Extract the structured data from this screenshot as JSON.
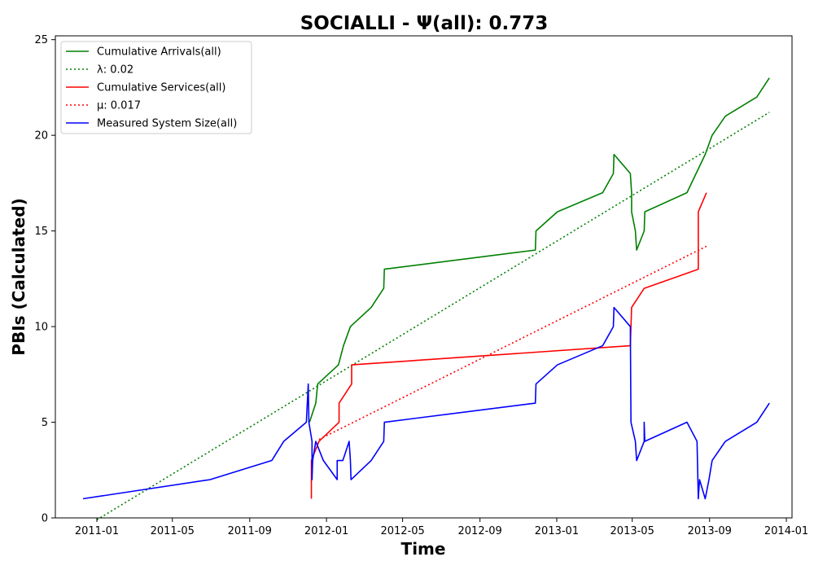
{
  "chart_data": {
    "type": "line",
    "title": "SOCIALLI -  Ψ(all): 0.773",
    "xlabel": "Time",
    "ylabel": "PBIs (Calculated)",
    "xlim": [
      "2010-10-27",
      "2014-01-10"
    ],
    "ylim": [
      0,
      25.2
    ],
    "x_ticks": [
      "2011-01-01",
      "2011-05-01",
      "2011-09-01",
      "2012-01-01",
      "2012-05-01",
      "2012-09-01",
      "2013-01-01",
      "2013-05-01",
      "2013-09-01",
      "2014-01-01"
    ],
    "x_tick_labels": [
      "2011-01",
      "2011-05",
      "2011-09",
      "2012-01",
      "2012-05",
      "2012-09",
      "2013-01",
      "2013-05",
      "2013-09",
      "2014-01"
    ],
    "y_ticks": [
      0,
      5,
      10,
      15,
      20,
      25
    ],
    "grid": false,
    "legend_position": "top-left",
    "series": [
      {
        "name": "Cumulative Arrivals(all)",
        "color": "#008000",
        "style": "solid",
        "points": [
          [
            "2011-12-05",
            5
          ],
          [
            "2011-12-15",
            6
          ],
          [
            "2011-12-18",
            7
          ],
          [
            "2012-01-20",
            8
          ],
          [
            "2012-01-28",
            9
          ],
          [
            "2012-02-08",
            10
          ],
          [
            "2012-03-12",
            11
          ],
          [
            "2012-04-01",
            12
          ],
          [
            "2012-04-02",
            13
          ],
          [
            "2012-11-28",
            14
          ],
          [
            "2012-11-29",
            15
          ],
          [
            "2013-01-02",
            16
          ],
          [
            "2013-03-15",
            17
          ],
          [
            "2013-04-01",
            18
          ],
          [
            "2013-04-02",
            19
          ],
          [
            "2013-04-28",
            18
          ],
          [
            "2013-04-30",
            17
          ],
          [
            "2013-04-30",
            16
          ],
          [
            "2013-05-06",
            15
          ],
          [
            "2013-05-08",
            14
          ],
          [
            "2013-05-20",
            15
          ],
          [
            "2013-05-21",
            16
          ],
          [
            "2013-07-27",
            17
          ],
          [
            "2013-08-25",
            19
          ],
          [
            "2013-09-05",
            20
          ],
          [
            "2013-09-26",
            21
          ],
          [
            "2013-11-15",
            22
          ],
          [
            "2013-12-05",
            23
          ]
        ]
      },
      {
        "name": "λ: 0.02",
        "color": "#008000",
        "style": "dotted",
        "points": [
          [
            "2011-01-01",
            -0.1
          ],
          [
            "2013-12-05",
            21.2
          ]
        ]
      },
      {
        "name": "Cumulative Services(all)",
        "color": "#ff0000",
        "style": "solid",
        "points": [
          [
            "2011-12-08",
            1
          ],
          [
            "2011-12-08",
            3
          ],
          [
            "2011-12-20",
            4
          ],
          [
            "2012-01-21",
            5
          ],
          [
            "2012-01-21",
            6
          ],
          [
            "2012-02-10",
            7
          ],
          [
            "2012-02-10",
            8
          ],
          [
            "2013-04-28",
            9
          ],
          [
            "2013-04-29",
            10
          ],
          [
            "2013-04-30",
            11
          ],
          [
            "2013-05-20",
            12
          ],
          [
            "2013-08-14",
            13
          ],
          [
            "2013-08-14",
            16
          ],
          [
            "2013-08-27",
            17
          ]
        ]
      },
      {
        "name": "μ: 0.017",
        "color": "#ff0000",
        "style": "dotted",
        "points": [
          [
            "2011-12-20",
            4.1
          ],
          [
            "2013-08-27",
            14.2
          ]
        ]
      },
      {
        "name": "Measured System Size(all)",
        "color": "#0000ff",
        "style": "solid",
        "points": [
          [
            "2010-12-10",
            1
          ],
          [
            "2011-06-30",
            2
          ],
          [
            "2011-10-06",
            3
          ],
          [
            "2011-10-25",
            4
          ],
          [
            "2011-11-30",
            5
          ],
          [
            "2011-12-03",
            7
          ],
          [
            "2011-12-04",
            5
          ],
          [
            "2011-12-09",
            4
          ],
          [
            "2011-12-09",
            2
          ],
          [
            "2011-12-10",
            3
          ],
          [
            "2011-12-15",
            4
          ],
          [
            "2011-12-27",
            3
          ],
          [
            "2012-01-18",
            2
          ],
          [
            "2012-01-18",
            3
          ],
          [
            "2012-01-27",
            3
          ],
          [
            "2012-02-06",
            4
          ],
          [
            "2012-02-08",
            3
          ],
          [
            "2012-02-09",
            2
          ],
          [
            "2012-03-12",
            3
          ],
          [
            "2012-04-01",
            4
          ],
          [
            "2012-04-02",
            5
          ],
          [
            "2012-11-28",
            6
          ],
          [
            "2012-11-29",
            7
          ],
          [
            "2013-01-02",
            8
          ],
          [
            "2013-03-15",
            9
          ],
          [
            "2013-04-01",
            10
          ],
          [
            "2013-04-02",
            11
          ],
          [
            "2013-04-28",
            10
          ],
          [
            "2013-04-29",
            5
          ],
          [
            "2013-05-06",
            4
          ],
          [
            "2013-05-08",
            3
          ],
          [
            "2013-05-20",
            4
          ],
          [
            "2013-05-20",
            5
          ],
          [
            "2013-05-21",
            4
          ],
          [
            "2013-07-27",
            5
          ],
          [
            "2013-08-12",
            4
          ],
          [
            "2013-08-14",
            1
          ],
          [
            "2013-08-16",
            2
          ],
          [
            "2013-08-25",
            1
          ],
          [
            "2013-08-31",
            2
          ],
          [
            "2013-09-05",
            3
          ],
          [
            "2013-09-26",
            4
          ],
          [
            "2013-11-15",
            5
          ],
          [
            "2013-12-05",
            6
          ]
        ]
      }
    ]
  }
}
